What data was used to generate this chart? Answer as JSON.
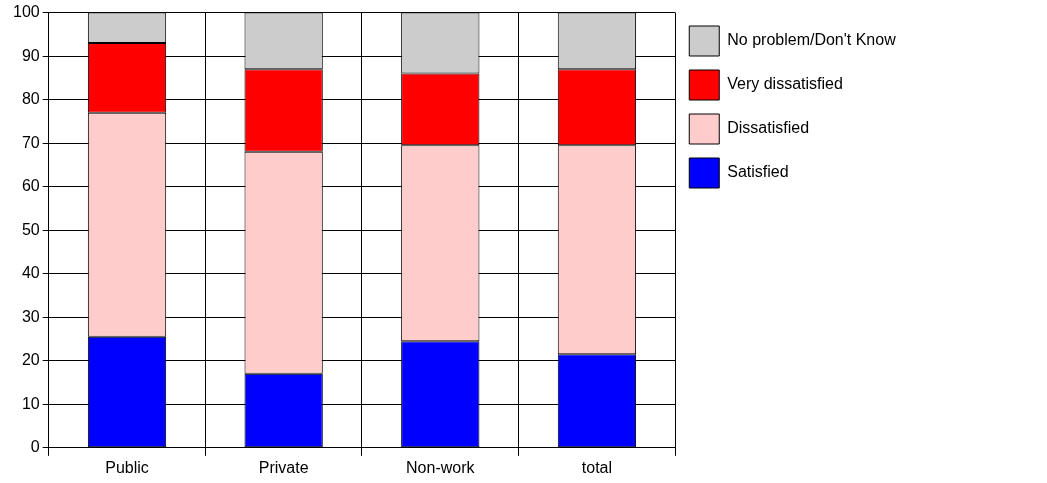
{
  "chart_data": {
    "type": "bar",
    "stacked": true,
    "categories": [
      "Public",
      "Private",
      "Non-work",
      "total"
    ],
    "series": [
      {
        "name": "Satisfied",
        "color": "#0000ff",
        "values": [
          25.5,
          17,
          24.5,
          21.5
        ]
      },
      {
        "name": "Dissatisfied",
        "color": "#ffcccc",
        "values": [
          51.5,
          51,
          45,
          48
        ]
      },
      {
        "name": "Very dissatisfied",
        "color": "#ff0000",
        "values": [
          16,
          19,
          16.5,
          17.5
        ]
      },
      {
        "name": "No problem/Don't Know",
        "color": "#cccccc",
        "values": [
          7,
          13,
          14,
          13
        ]
      }
    ],
    "ylim": [
      0,
      100
    ],
    "yticks": [
      0,
      10,
      20,
      30,
      40,
      50,
      60,
      70,
      80,
      90,
      100
    ],
    "grid": true,
    "legend": "top right"
  }
}
